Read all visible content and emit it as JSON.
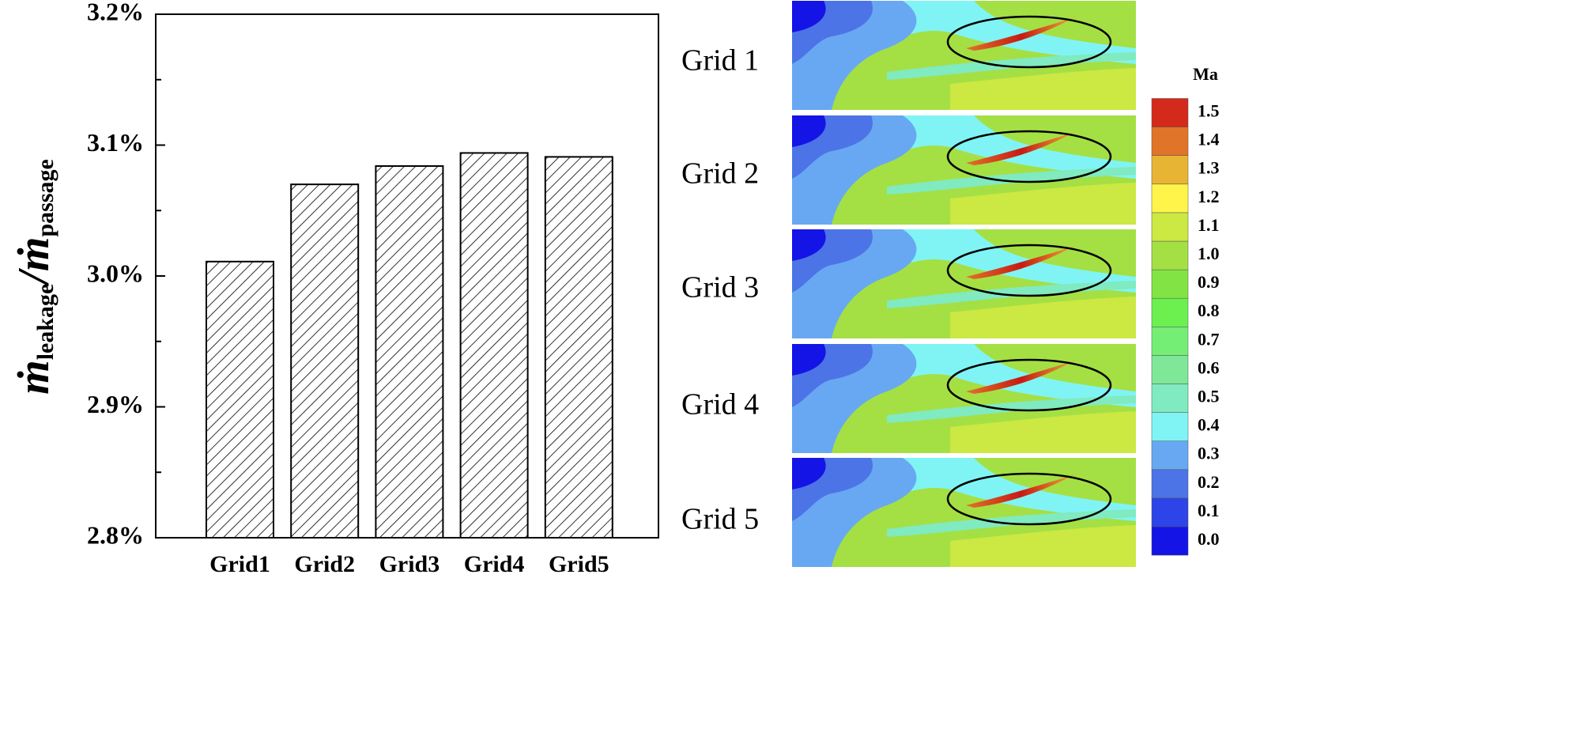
{
  "chart_data": {
    "type": "bar",
    "ylabel_parts": [
      "ṁ",
      "leakage",
      "/ṁ",
      "passage"
    ],
    "categories": [
      "Grid1",
      "Grid2",
      "Grid3",
      "Grid4",
      "Grid5"
    ],
    "values": [
      3.011,
      3.07,
      3.084,
      3.094,
      3.091
    ],
    "ylim": [
      2.8,
      3.2
    ],
    "yticks": [
      {
        "value": 2.8,
        "label": "2.8%"
      },
      {
        "value": 2.9,
        "label": "2.9%"
      },
      {
        "value": 3.0,
        "label": "3.0%"
      },
      {
        "value": 3.1,
        "label": "3.1%"
      },
      {
        "value": 3.2,
        "label": "3.2%"
      }
    ],
    "minor_yticks": [
      2.85,
      2.95,
      3.05,
      3.15
    ],
    "hatch": "diagonal",
    "panel_labels": [
      "Grid 1",
      "Grid 2",
      "Grid 3",
      "Grid 4",
      "Grid 5"
    ],
    "colorbar": {
      "title": "Ma",
      "ticks": [
        {
          "value": 0,
          "label": "0.0"
        },
        0.1,
        0.2,
        0.3,
        0.4,
        0.5,
        0.6,
        0.7,
        0.8,
        0.9,
        {
          "value": 1,
          "label": "1.0"
        },
        1.1,
        1.2,
        1.3,
        1.4,
        1.5
      ],
      "colors": [
        "#1414e6",
        "#2c44e8",
        "#4c74e6",
        "#68a8f2",
        "#80f4f4",
        "#80eac0",
        "#7ee898",
        "#74ee74",
        "#6cf050",
        "#82e444",
        "#a4e044",
        "#cce842",
        "#fff44a",
        "#e8b434",
        "#e07428",
        "#d42a1c"
      ]
    }
  }
}
